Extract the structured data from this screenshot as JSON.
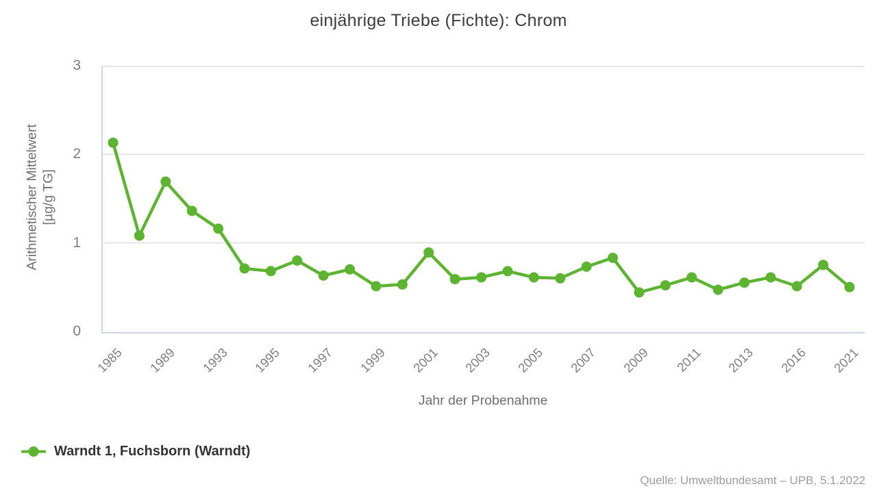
{
  "title": "einjährige Triebe (Fichte): Chrom",
  "source": "Quelle: Umweltbundesamt – UPB, 5.1.2022",
  "legend": {
    "label": "Warndt 1, Fuchsborn (Warndt)",
    "marker": "green-line-with-dot"
  },
  "colors": {
    "series_green": "#5cb431",
    "axis_frame": "#ccd7e3",
    "gridline": "#e4e4e4",
    "tick_text": "#7e7e7e",
    "title_text": "#3d3d3d",
    "axis_title_text": "#6f6f6f",
    "legend_text": "#333333",
    "source_text": "#9c9c9c"
  },
  "chart_data": {
    "type": "line",
    "title": "einjährige Triebe (Fichte): Chrom",
    "xlabel": "Jahr der Probenahme",
    "ylabel": "Arithmetischer Mittelwert [µg/g TG]",
    "ylabel_lines": [
      "Arithmetischer Mittelwert",
      "[µg/g TG]"
    ],
    "ylim": [
      0,
      3
    ],
    "yticks": [
      0,
      1,
      2,
      3
    ],
    "grid": "horizontal",
    "legend_position": "bottom-left",
    "x_tick_label_every": 2,
    "x_tick_rotation": -45,
    "categories": [
      "1985",
      "1987",
      "1989",
      "1991",
      "1993",
      "1994",
      "1995",
      "1996",
      "1997",
      "1998",
      "1999",
      "2000",
      "2001",
      "2002",
      "2003",
      "2004",
      "2005",
      "2006",
      "2007",
      "2008",
      "2009",
      "2010",
      "2011",
      "2012",
      "2013",
      "2015",
      "2016",
      "2018",
      "2021"
    ],
    "visible_x_tick_labels": [
      "1985",
      "1989",
      "1993",
      "1995",
      "1997",
      "1999",
      "2001",
      "2003",
      "2005",
      "2007",
      "2009",
      "2011",
      "2013",
      "2016",
      "2021"
    ],
    "series": [
      {
        "name": "Warndt 1, Fuchsborn (Warndt)",
        "color": "#5cb431",
        "marker": "circle",
        "values": [
          2.13,
          1.08,
          1.69,
          1.36,
          1.16,
          0.71,
          0.68,
          0.8,
          0.63,
          0.7,
          0.51,
          0.53,
          0.89,
          0.59,
          0.61,
          0.68,
          0.61,
          0.6,
          0.73,
          0.83,
          0.44,
          0.52,
          0.61,
          0.47,
          0.55,
          0.61,
          0.51,
          0.75,
          0.5
        ]
      }
    ]
  }
}
